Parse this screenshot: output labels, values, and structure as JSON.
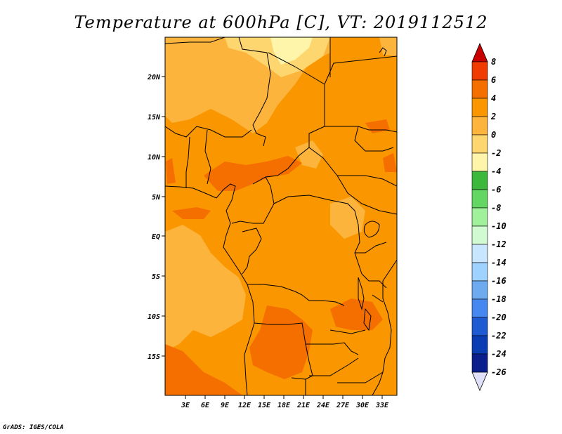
{
  "title": "Temperature at 600hPa [C], VT: 2019112512",
  "credit": "GrADS: IGES/COLA",
  "lat_labels": [
    "20N",
    "15N",
    "10N",
    "5N",
    "EQ",
    "5S",
    "10S",
    "15S"
  ],
  "lon_labels": [
    "3E",
    "6E",
    "9E",
    "12E",
    "15E",
    "18E",
    "21E",
    "24E",
    "27E",
    "30E",
    "33E"
  ],
  "colorbar": {
    "labels": [
      "8",
      "6",
      "4",
      "2",
      "0",
      "-2",
      "-4",
      "-6",
      "-8",
      "-10",
      "-12",
      "-14",
      "-16",
      "-18",
      "-20",
      "-22",
      "-24",
      "-26"
    ],
    "colors": [
      "#c80000",
      "#f03c00",
      "#f56e00",
      "#fa9600",
      "#fcb43c",
      "#fed670",
      "#fff5aa",
      "#3cb83c",
      "#64d664",
      "#a0f09c",
      "#d2fad2",
      "#c8e6ff",
      "#a0d2ff",
      "#6eaaf0",
      "#4687f0",
      "#1e5ad2",
      "#0a3cb4",
      "#0a1e8c",
      "#000064",
      "#e0e0f8"
    ],
    "top_arrow_color": "#c80000",
    "bottom_arrow_color": "#e0e0f8"
  },
  "map_colors": {
    "warm_4_6": "#f56e00",
    "warm_2_4": "#fa9600",
    "warm_0_2": "#fcb43c",
    "cool_m2_0": "#fed670",
    "cool_m4_m2": "#fff5aa"
  }
}
